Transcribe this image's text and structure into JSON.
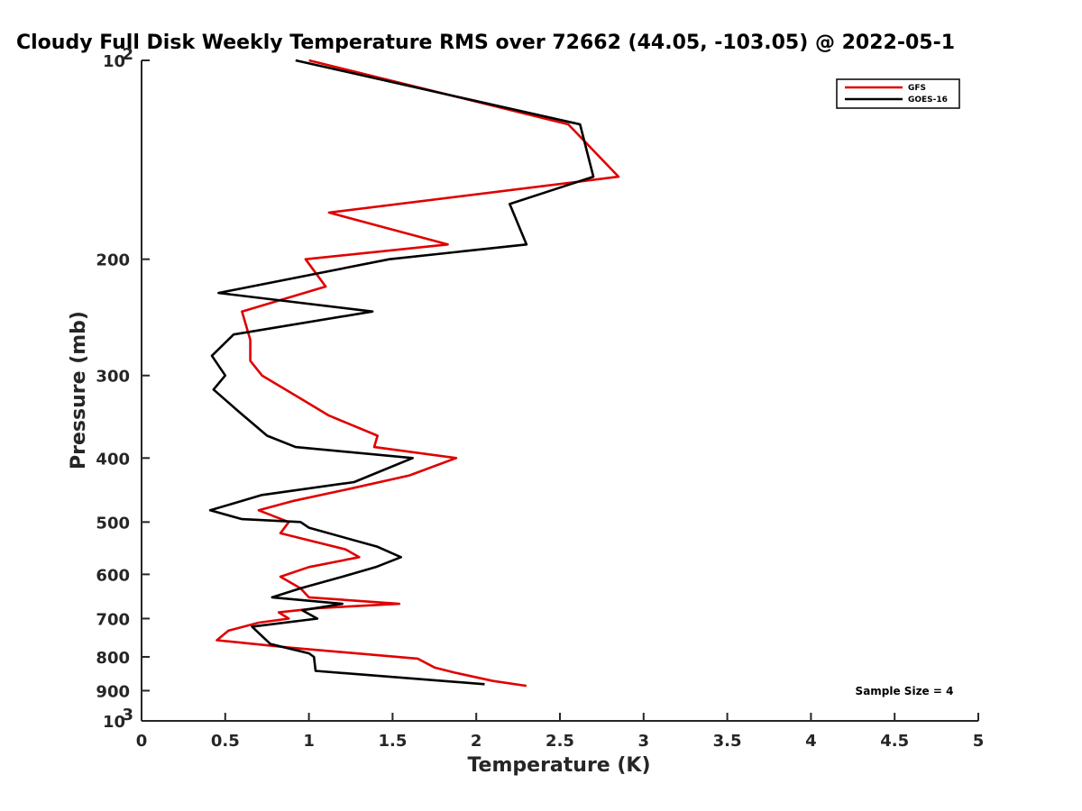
{
  "chart_data": {
    "type": "line",
    "title": "Cloudy Full Disk Weekly Temperature RMS over 72662 (44.05, -103.05) @ 2022-05-1",
    "xlabel": "Temperature (K)",
    "ylabel": "Pressure (mb)",
    "xlim": [
      0,
      5
    ],
    "ylim": [
      100,
      1000
    ],
    "y_scale": "log",
    "y_reversed": true,
    "grid": false,
    "legend_position": "top-right",
    "x_ticks": [
      "0",
      "0.5",
      "1",
      "1.5",
      "2",
      "2.5",
      "3",
      "3.5",
      "4",
      "4.5",
      "5"
    ],
    "x_tick_values": [
      0,
      0.5,
      1,
      1.5,
      2,
      2.5,
      3,
      3.5,
      4,
      4.5,
      5
    ],
    "y_ticks": [
      {
        "label": "10",
        "sup": "2",
        "value": 100
      },
      {
        "label": "200",
        "sup": "",
        "value": 200
      },
      {
        "label": "300",
        "sup": "",
        "value": 300
      },
      {
        "label": "400",
        "sup": "",
        "value": 400
      },
      {
        "label": "500",
        "sup": "",
        "value": 500
      },
      {
        "label": "600",
        "sup": "",
        "value": 600
      },
      {
        "label": "700",
        "sup": "",
        "value": 700
      },
      {
        "label": "800",
        "sup": "",
        "value": 800
      },
      {
        "label": "900",
        "sup": "",
        "value": 900
      },
      {
        "label": "10",
        "sup": "3",
        "value": 1000
      }
    ],
    "annotation": "Sample Size = 4",
    "series": [
      {
        "name": "GFS",
        "color": "#e00000",
        "points": [
          [
            1.0,
            100
          ],
          [
            2.55,
            125
          ],
          [
            2.85,
            150
          ],
          [
            1.12,
            170
          ],
          [
            1.83,
            190
          ],
          [
            0.98,
            200
          ],
          [
            1.1,
            220
          ],
          [
            0.6,
            240
          ],
          [
            0.65,
            265
          ],
          [
            0.65,
            285
          ],
          [
            0.72,
            300
          ],
          [
            0.95,
            325
          ],
          [
            1.12,
            345
          ],
          [
            1.41,
            370
          ],
          [
            1.39,
            385
          ],
          [
            1.88,
            400
          ],
          [
            1.6,
            425
          ],
          [
            1.25,
            445
          ],
          [
            0.9,
            465
          ],
          [
            0.7,
            480
          ],
          [
            0.88,
            500
          ],
          [
            0.83,
            520
          ],
          [
            1.22,
            550
          ],
          [
            1.3,
            565
          ],
          [
            1.0,
            585
          ],
          [
            0.83,
            605
          ],
          [
            0.95,
            630
          ],
          [
            1.0,
            650
          ],
          [
            1.54,
            665
          ],
          [
            1.05,
            675
          ],
          [
            0.82,
            685
          ],
          [
            0.88,
            700
          ],
          [
            0.7,
            710
          ],
          [
            0.52,
            730
          ],
          [
            0.45,
            755
          ],
          [
            0.9,
            775
          ],
          [
            1.65,
            805
          ],
          [
            1.75,
            830
          ],
          [
            1.87,
            845
          ],
          [
            2.1,
            870
          ],
          [
            2.3,
            885
          ]
        ]
      },
      {
        "name": "GOES-16",
        "color": "#000000",
        "points": [
          [
            0.92,
            100
          ],
          [
            2.62,
            125
          ],
          [
            2.7,
            150
          ],
          [
            2.2,
            165
          ],
          [
            2.3,
            190
          ],
          [
            1.48,
            200
          ],
          [
            0.46,
            225
          ],
          [
            1.38,
            240
          ],
          [
            0.55,
            260
          ],
          [
            0.42,
            280
          ],
          [
            0.5,
            300
          ],
          [
            0.43,
            315
          ],
          [
            0.58,
            340
          ],
          [
            0.75,
            370
          ],
          [
            0.92,
            385
          ],
          [
            1.62,
            400
          ],
          [
            1.27,
            435
          ],
          [
            0.72,
            455
          ],
          [
            0.41,
            480
          ],
          [
            0.6,
            495
          ],
          [
            0.95,
            500
          ],
          [
            1.0,
            510
          ],
          [
            1.41,
            545
          ],
          [
            1.55,
            565
          ],
          [
            1.4,
            585
          ],
          [
            1.2,
            605
          ],
          [
            0.95,
            630
          ],
          [
            0.78,
            650
          ],
          [
            1.2,
            665
          ],
          [
            0.96,
            680
          ],
          [
            1.05,
            700
          ],
          [
            0.66,
            720
          ],
          [
            0.77,
            765
          ],
          [
            1.0,
            790
          ],
          [
            1.03,
            800
          ],
          [
            1.04,
            840
          ],
          [
            2.05,
            880
          ]
        ]
      }
    ]
  }
}
